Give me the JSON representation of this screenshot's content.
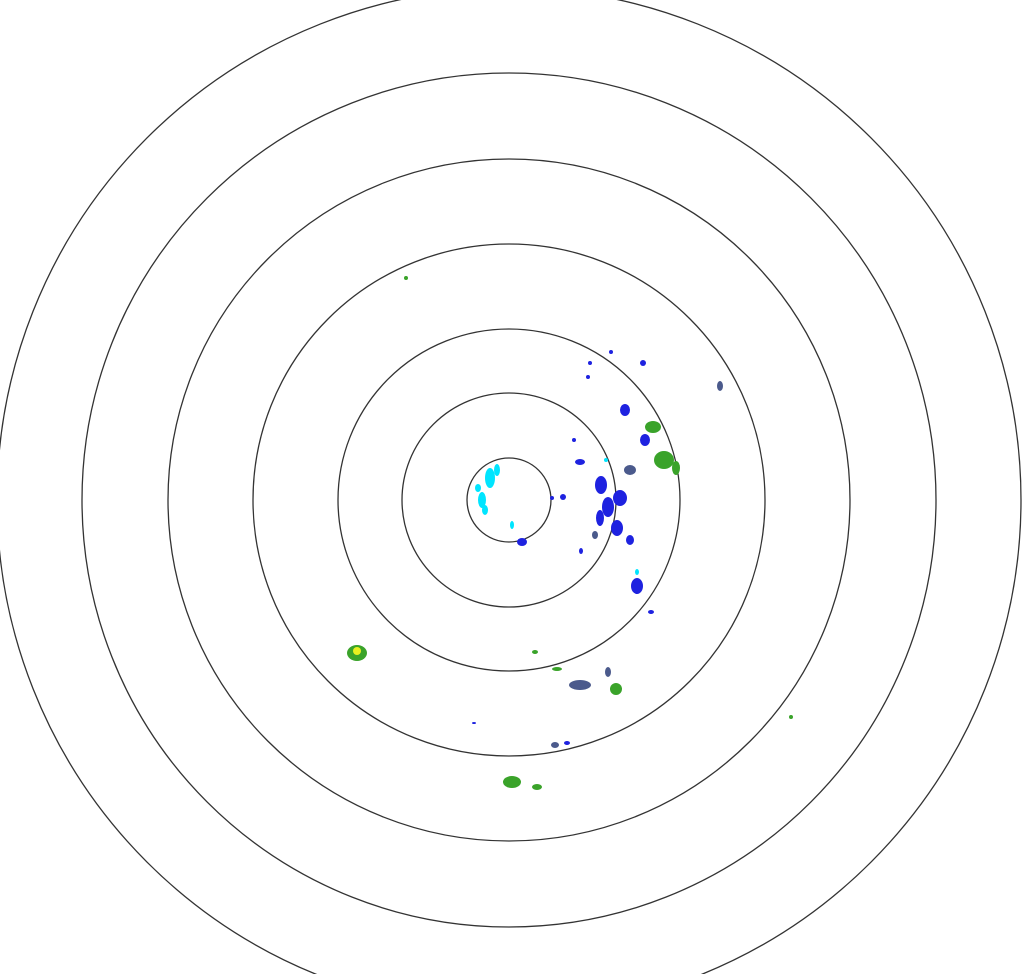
{
  "display": {
    "background_color": "#ffffff",
    "range_ring_color": "#333333",
    "range_ring_count": 7
  },
  "echo_palette": {
    "very_light": "#00e5ff",
    "light": "#1e22e0",
    "weak_mixed": "#4b5a8c",
    "moderate": "#3aa32a",
    "heavy": "#e8f020"
  }
}
